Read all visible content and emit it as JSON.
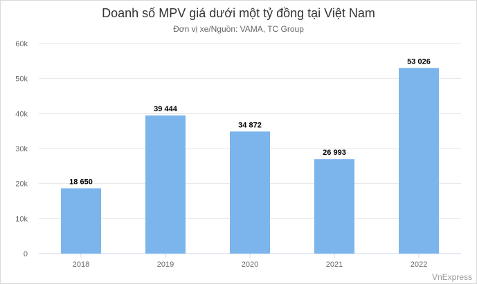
{
  "chart_data": {
    "type": "bar",
    "title": "Doanh số MPV giá dưới một tỷ đồng tại Việt Nam",
    "subtitle": "Đơn vị xe/Nguồn: VAMA, TC Group",
    "categories": [
      "2018",
      "2019",
      "2020",
      "2021",
      "2022"
    ],
    "values": [
      18650,
      39444,
      34872,
      26993,
      53026
    ],
    "data_labels": [
      "18 650",
      "39 444",
      "34 872",
      "26 993",
      "53 026"
    ],
    "yticks": [
      0,
      10000,
      20000,
      30000,
      40000,
      50000,
      60000
    ],
    "ytick_labels": [
      "0",
      "10k",
      "20k",
      "30k",
      "40k",
      "50k",
      "60k"
    ],
    "ylim": [
      0,
      60000
    ],
    "grid": true,
    "bar_color": "#7cb5ec",
    "credit": "VnExpress"
  }
}
